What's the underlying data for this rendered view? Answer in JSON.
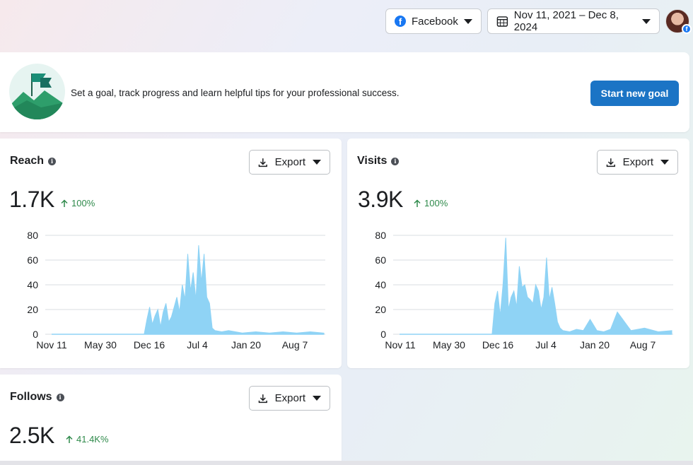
{
  "topbar": {
    "platform_label": "Facebook",
    "date_range_label": "Nov 11, 2021 – Dec 8, 2024"
  },
  "goal": {
    "text": "Set a goal, track progress and learn helpful tips for your professional success.",
    "button_label": "Start new goal"
  },
  "cards": {
    "reach": {
      "title": "Reach",
      "export_label": "Export",
      "value": "1.7K",
      "delta": "100%"
    },
    "visits": {
      "title": "Visits",
      "export_label": "Export",
      "value": "3.9K",
      "delta": "100%"
    },
    "follows": {
      "title": "Follows",
      "export_label": "Export",
      "value": "2.5K",
      "delta": "41.4K%"
    }
  },
  "colors": {
    "accent": "#1b74c5",
    "series": "#8fd3f5",
    "positive": "#2f8a4b",
    "grid": "#dadde1"
  },
  "icons": [
    "facebook-icon",
    "calendar-icon",
    "caret-down-icon",
    "info-icon",
    "download-icon",
    "arrow-up-icon",
    "goal-flag-icon",
    "avatar"
  ],
  "chart_data": [
    {
      "type": "area",
      "ylim": [
        0,
        80
      ],
      "yticks": [
        0,
        20,
        40,
        60,
        80
      ],
      "x_tick_labels": [
        "Nov 11",
        "May 30",
        "Dec 16",
        "Jul 4",
        "Jan 20",
        "Aug 7"
      ],
      "series": [
        {
          "x": [
            0,
            10,
            20,
            30,
            40,
            50,
            60,
            68,
            70,
            72,
            74,
            76,
            78,
            80,
            82,
            84,
            86,
            88,
            90,
            92,
            94,
            96,
            98,
            100,
            102,
            104,
            106,
            108,
            110,
            112,
            114,
            116,
            118,
            120,
            125,
            130,
            135,
            140,
            150,
            160,
            170,
            180,
            190,
            200
          ],
          "values": [
            0,
            0,
            0,
            0,
            0,
            0,
            0,
            0,
            12,
            22,
            8,
            15,
            20,
            6,
            18,
            25,
            10,
            14,
            22,
            30,
            18,
            40,
            28,
            65,
            35,
            50,
            28,
            72,
            42,
            65,
            30,
            25,
            5,
            3,
            2,
            3,
            2,
            1,
            2,
            1,
            2,
            1,
            2,
            1
          ]
        }
      ]
    },
    {
      "type": "area",
      "ylim": [
        0,
        80
      ],
      "yticks": [
        0,
        20,
        40,
        60,
        80
      ],
      "x_tick_labels": [
        "Nov 11",
        "May 30",
        "Dec 16",
        "Jul 4",
        "Jan 20",
        "Aug 7"
      ],
      "series": [
        {
          "x": [
            0,
            10,
            20,
            30,
            40,
            50,
            60,
            68,
            70,
            72,
            74,
            76,
            78,
            80,
            82,
            84,
            86,
            88,
            90,
            92,
            94,
            96,
            98,
            100,
            102,
            104,
            106,
            108,
            110,
            112,
            114,
            116,
            118,
            120,
            125,
            130,
            135,
            140,
            145,
            150,
            155,
            160,
            170,
            180,
            190,
            200
          ],
          "values": [
            0,
            0,
            0,
            0,
            0,
            0,
            0,
            0,
            25,
            35,
            15,
            40,
            78,
            20,
            30,
            35,
            22,
            55,
            38,
            40,
            30,
            28,
            25,
            40,
            35,
            20,
            30,
            62,
            28,
            38,
            25,
            10,
            5,
            3,
            2,
            4,
            3,
            12,
            3,
            2,
            4,
            18,
            3,
            5,
            2,
            3
          ]
        }
      ]
    }
  ]
}
